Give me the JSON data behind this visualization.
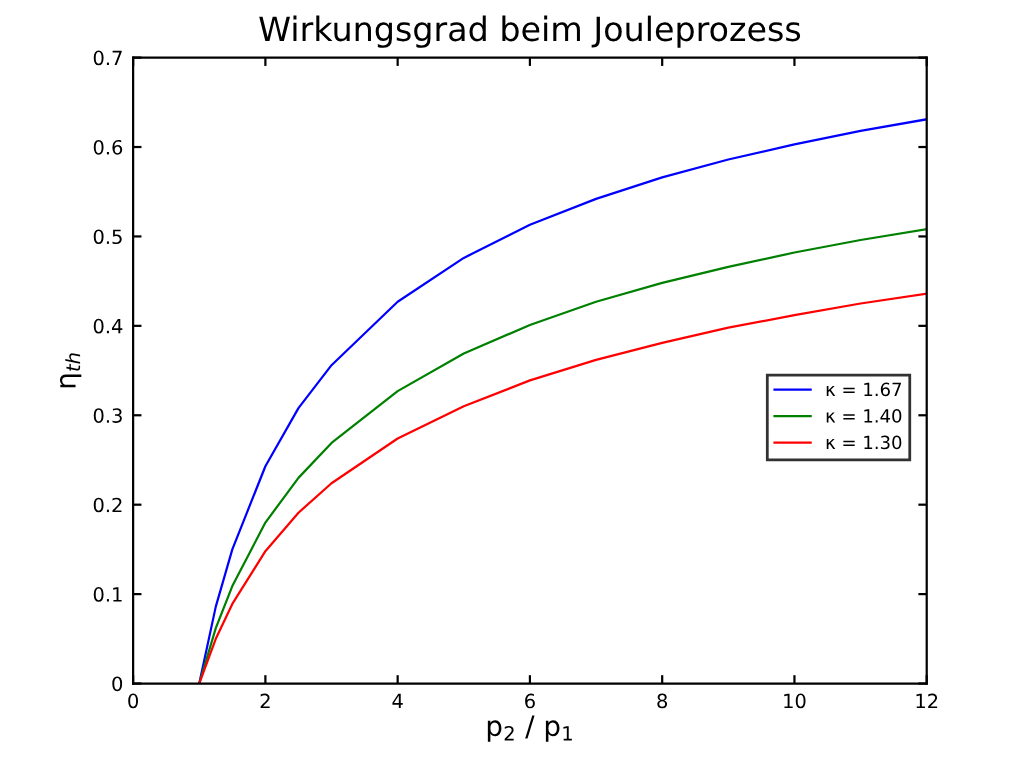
{
  "chart_data": {
    "type": "line",
    "title": "Wirkungsgrad beim Jouleprozess",
    "xlabel": "p$_{2}$ / p$_{1}$",
    "ylabel": "η$_{th}$",
    "x": [
      1,
      1.25,
      1.5,
      2,
      2.5,
      3,
      4,
      5,
      6,
      7,
      8,
      9,
      10,
      11,
      12
    ],
    "series": [
      {
        "name": "κ = 1.67",
        "color": "#0000ff",
        "values": [
          0,
          0.086,
          0.15,
          0.243,
          0.308,
          0.356,
          0.427,
          0.476,
          0.513,
          0.542,
          0.566,
          0.586,
          0.603,
          0.618,
          0.631
        ]
      },
      {
        "name": "κ = 1.40",
        "color": "#008000",
        "values": [
          0,
          0.062,
          0.109,
          0.18,
          0.23,
          0.269,
          0.327,
          0.369,
          0.401,
          0.427,
          0.448,
          0.466,
          0.482,
          0.496,
          0.508
        ]
      },
      {
        "name": "κ = 1.30",
        "color": "#ff0000",
        "values": [
          0,
          0.05,
          0.089,
          0.148,
          0.191,
          0.224,
          0.274,
          0.31,
          0.339,
          0.362,
          0.381,
          0.398,
          0.412,
          0.425,
          0.436
        ]
      }
    ],
    "xlim": [
      0,
      12
    ],
    "xticks": [
      0,
      2,
      4,
      6,
      8,
      10,
      12
    ],
    "ylim": [
      0,
      0.7
    ],
    "yticks": [
      0,
      0.1,
      0.2,
      0.3,
      0.4,
      0.5,
      0.6,
      0.7
    ],
    "grid": false,
    "legend": "center right",
    "marker": "none",
    "line_style": "solid"
  }
}
